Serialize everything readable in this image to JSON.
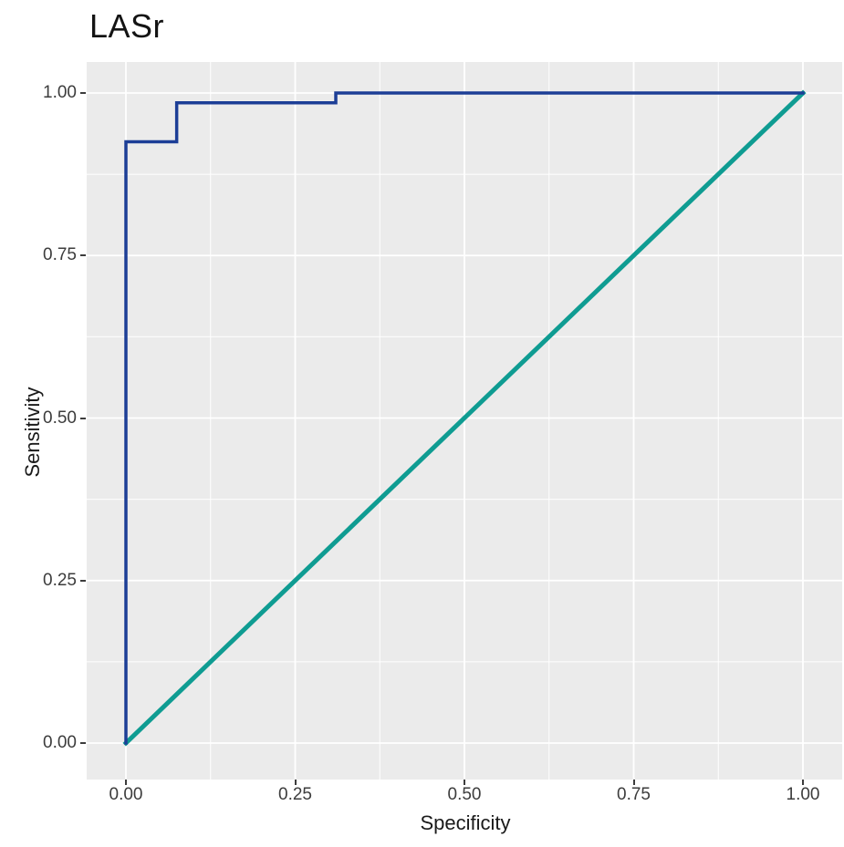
{
  "chart_data": {
    "type": "line",
    "title": "LASr",
    "xlabel": "Specificity",
    "ylabel": "Sensitivity",
    "xlim": [
      0,
      1
    ],
    "ylim": [
      0,
      1
    ],
    "xticks": [
      0.0,
      0.25,
      0.5,
      0.75,
      1.0
    ],
    "yticks": [
      0.0,
      0.25,
      0.5,
      0.75,
      1.0
    ],
    "tick_decimals": 2,
    "grid": true,
    "legend": "none",
    "panel_bg": "#ebebeb",
    "grid_color": "#ffffff",
    "series": [
      {
        "name": "roc-curve",
        "color": "#1c3e96",
        "stroke_width": 3.5,
        "points": [
          [
            0.0,
            0.0
          ],
          [
            0.0,
            0.925
          ],
          [
            0.075,
            0.925
          ],
          [
            0.075,
            0.985
          ],
          [
            0.31,
            0.985
          ],
          [
            0.31,
            1.0
          ],
          [
            1.0,
            1.0
          ]
        ]
      },
      {
        "name": "reference-diagonal",
        "color": "#0f9c92",
        "stroke_width": 5,
        "points": [
          [
            0.0,
            0.0
          ],
          [
            1.0,
            1.0
          ]
        ]
      }
    ]
  }
}
